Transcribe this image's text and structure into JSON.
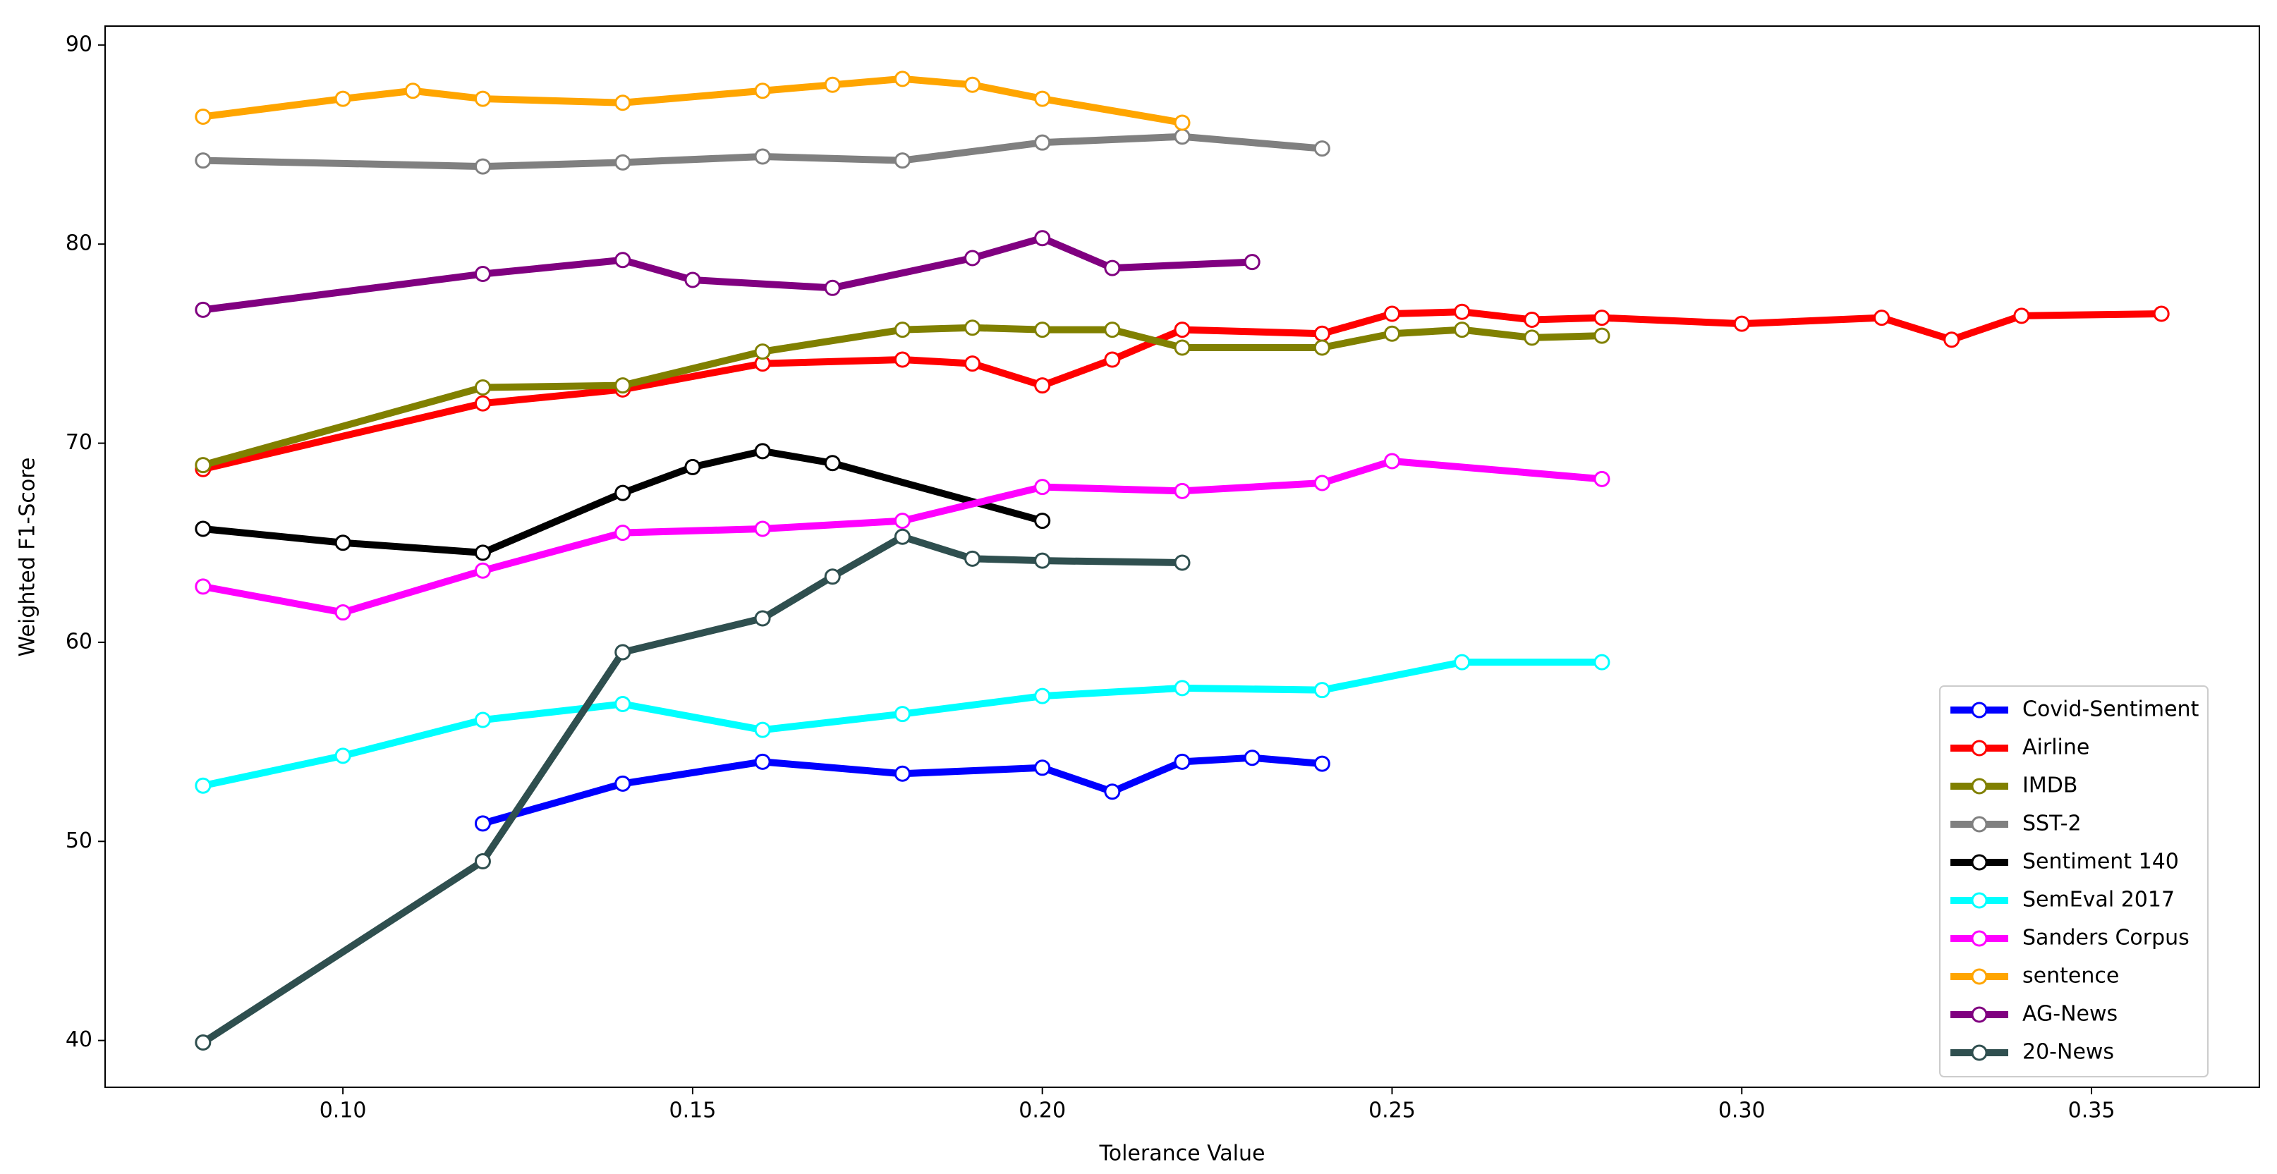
{
  "chart_data": {
    "type": "line",
    "x_label": "Tolerance Value",
    "y_label": "Weighted F1-Score",
    "xlim": [
      0.066,
      0.374
    ],
    "ylim": [
      37.65,
      90.95
    ],
    "xticks": [
      {
        "value": 0.1,
        "label": "0.10"
      },
      {
        "value": 0.15,
        "label": "0.15"
      },
      {
        "value": 0.2,
        "label": "0.20"
      },
      {
        "value": 0.25,
        "label": "0.25"
      },
      {
        "value": 0.3,
        "label": "0.30"
      },
      {
        "value": 0.35,
        "label": "0.35"
      }
    ],
    "yticks": [
      40,
      50,
      60,
      70,
      80,
      90
    ],
    "legend": "lower right",
    "series": [
      {
        "name": "Covid-Sentiment",
        "color": "#0000ff",
        "x": [
          0.12,
          0.14,
          0.16,
          0.18,
          0.2,
          0.21,
          0.22,
          0.23,
          0.24
        ],
        "values": [
          50.9,
          52.9,
          54.0,
          53.4,
          53.7,
          52.5,
          54.0,
          54.2,
          53.9
        ]
      },
      {
        "name": "Airline",
        "color": "#ff0000",
        "x": [
          0.08,
          0.12,
          0.14,
          0.16,
          0.18,
          0.19,
          0.2,
          0.21,
          0.22,
          0.24,
          0.25,
          0.26,
          0.27,
          0.28,
          0.3,
          0.32,
          0.33,
          0.34,
          0.36
        ],
        "values": [
          68.7,
          72.0,
          72.7,
          74.0,
          74.2,
          74.0,
          72.9,
          74.2,
          75.7,
          75.5,
          76.5,
          76.6,
          76.2,
          76.3,
          76.0,
          76.3,
          75.2,
          76.4,
          76.5
        ]
      },
      {
        "name": "IMDB",
        "color": "#808000",
        "x": [
          0.08,
          0.12,
          0.14,
          0.16,
          0.18,
          0.19,
          0.2,
          0.21,
          0.22,
          0.24,
          0.25,
          0.26,
          0.27,
          0.28
        ],
        "values": [
          68.9,
          72.8,
          72.9,
          74.6,
          75.7,
          75.8,
          75.7,
          75.7,
          74.8,
          74.8,
          75.5,
          75.7,
          75.3,
          75.4
        ]
      },
      {
        "name": "SST-2",
        "color": "#808080",
        "x": [
          0.08,
          0.12,
          0.14,
          0.16,
          0.18,
          0.2,
          0.22,
          0.24
        ],
        "values": [
          84.2,
          83.9,
          84.1,
          84.4,
          84.2,
          85.1,
          85.4,
          84.8
        ]
      },
      {
        "name": "Sentiment 140",
        "color": "#000000",
        "x": [
          0.08,
          0.1,
          0.12,
          0.14,
          0.15,
          0.16,
          0.17,
          0.2
        ],
        "values": [
          65.7,
          65.0,
          64.5,
          67.5,
          68.8,
          69.6,
          69.0,
          66.1
        ]
      },
      {
        "name": "SemEval 2017",
        "color": "#00ffff",
        "x": [
          0.08,
          0.1,
          0.12,
          0.14,
          0.16,
          0.18,
          0.2,
          0.22,
          0.24,
          0.26,
          0.28
        ],
        "values": [
          52.8,
          54.3,
          56.1,
          56.9,
          55.6,
          56.4,
          57.3,
          57.7,
          57.6,
          59.0,
          59.0
        ]
      },
      {
        "name": "Sanders Corpus",
        "color": "#ff00ff",
        "x": [
          0.08,
          0.1,
          0.12,
          0.14,
          0.16,
          0.18,
          0.2,
          0.22,
          0.24,
          0.25,
          0.28
        ],
        "values": [
          62.8,
          61.5,
          63.6,
          65.5,
          65.7,
          66.1,
          67.8,
          67.6,
          68.0,
          69.1,
          68.2
        ]
      },
      {
        "name": "sentence",
        "color": "#ffa500",
        "x": [
          0.08,
          0.1,
          0.11,
          0.12,
          0.14,
          0.16,
          0.17,
          0.18,
          0.19,
          0.2,
          0.22
        ],
        "values": [
          86.4,
          87.3,
          87.7,
          87.3,
          87.1,
          87.7,
          88.0,
          88.3,
          88.0,
          87.3,
          86.1
        ]
      },
      {
        "name": "AG-News",
        "color": "#800080",
        "x": [
          0.08,
          0.12,
          0.14,
          0.15,
          0.17,
          0.19,
          0.2,
          0.21,
          0.23
        ],
        "values": [
          76.7,
          78.5,
          79.2,
          78.2,
          77.8,
          79.3,
          80.3,
          78.8,
          79.1
        ]
      },
      {
        "name": "20-News",
        "color": "#2f4f4f",
        "x": [
          0.08,
          0.12,
          0.14,
          0.16,
          0.17,
          0.18,
          0.19,
          0.2,
          0.22
        ],
        "values": [
          39.9,
          49.0,
          59.5,
          61.2,
          63.3,
          65.3,
          64.2,
          64.1,
          64.0
        ]
      }
    ]
  }
}
